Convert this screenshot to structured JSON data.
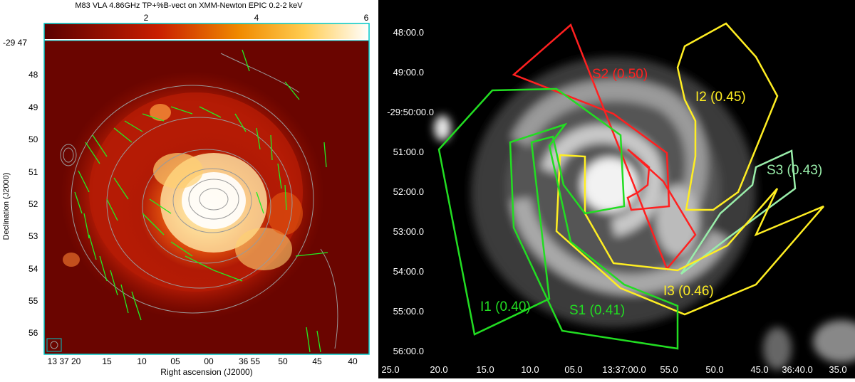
{
  "left": {
    "title": "M83 VLA 4.86GHz TP+%B-vect on XMM-Newton EPIC 0.2-2 keV",
    "colorbar_ticks": [
      "2",
      "4",
      "6"
    ],
    "dec_labels": [
      "-29 47",
      "48",
      "49",
      "50",
      "51",
      "52",
      "53",
      "54",
      "55",
      "56"
    ],
    "ra_labels": [
      "13 37 20",
      "15",
      "10",
      "05",
      "00",
      "36 55",
      "50",
      "45",
      "40"
    ],
    "xlabel": "Right ascension (J2000)",
    "ylabel": "Declination (J2000)",
    "colors": {
      "frame": "#00c8c8",
      "vectors": "#22ee22",
      "contours": "#9a9a9a"
    }
  },
  "right": {
    "dec_labels": [
      "48:00.0",
      "49:00.0",
      "-29:50:00.0",
      "51:00.0",
      "52:00.0",
      "53:00.0",
      "54:00.0",
      "55:00.0",
      "56:00.0"
    ],
    "ra_labels": [
      "25.0",
      "20.0",
      "15.0",
      "10.0",
      "05.0",
      "13:37:00.0",
      "55.0",
      "50.0",
      "45.0",
      "36:40.0",
      "35.0"
    ],
    "regions": [
      {
        "label": "S2 (0.50)",
        "color": "#ff2020"
      },
      {
        "label": "I2 (0.45)",
        "color": "#ffee22"
      },
      {
        "label": "S3 (0.43)",
        "color": "#99eeaa"
      },
      {
        "label": "I3 (0.46)",
        "color": "#ffee22"
      },
      {
        "label": "I1 (0.40)",
        "color": "#22dd22"
      },
      {
        "label": "S1 (0.41)",
        "color": "#22dd22"
      }
    ]
  }
}
